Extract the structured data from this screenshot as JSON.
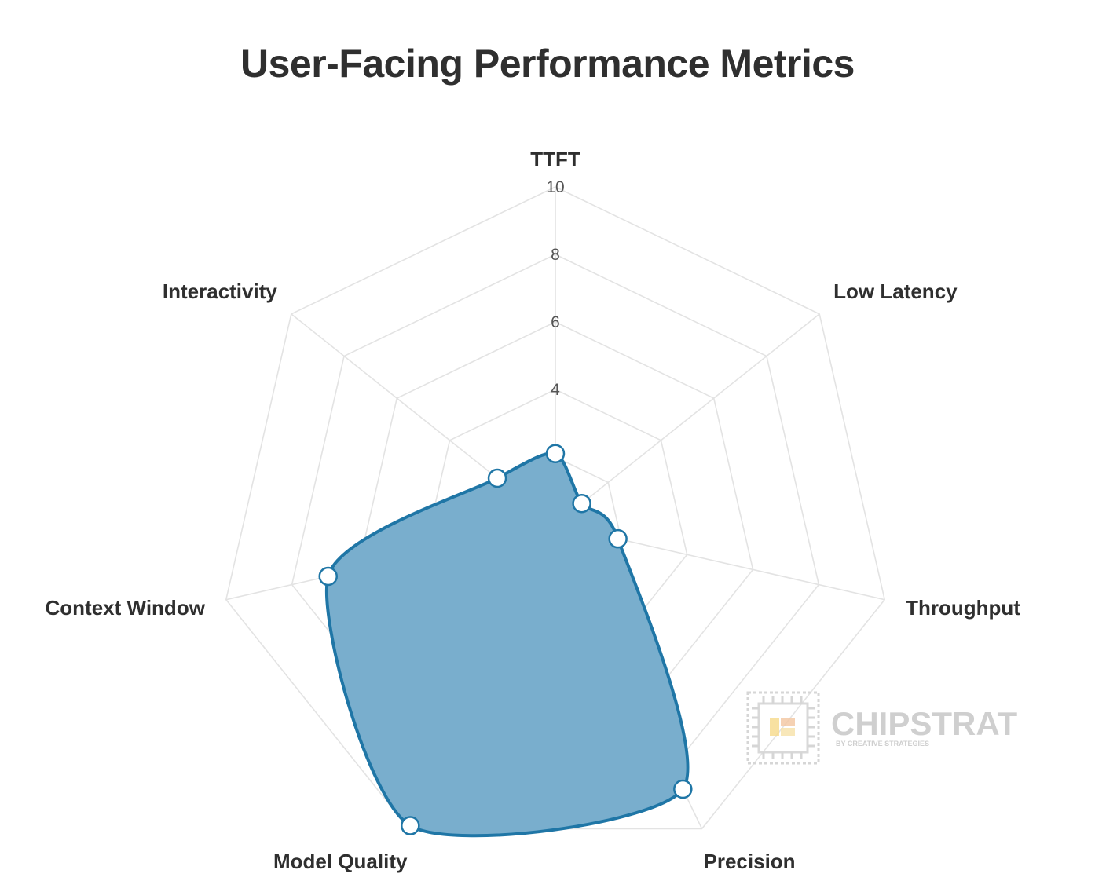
{
  "chart_data": {
    "type": "radar",
    "title": "User-Facing Performance Metrics",
    "axes": [
      "TTFT",
      "Low Latency",
      "Throughput",
      "Precision",
      "Model Quality",
      "Context Window",
      "Interactivity"
    ],
    "series": [
      {
        "values": [
          2.1,
          1.0,
          1.9,
          8.7,
          9.9,
          6.9,
          2.2
        ]
      }
    ],
    "rlim": [
      0,
      10
    ],
    "ticks": [
      "4",
      "6",
      "8",
      "10"
    ],
    "tick_values": [
      4,
      6,
      8,
      10
    ],
    "grid_levels": [
      2,
      4,
      6,
      8,
      10
    ],
    "grid": true
  },
  "colors": {
    "fill": "#79aecd",
    "stroke": "#1f76a6",
    "grid": "#e3e3e3",
    "text": "#2f2f2f"
  },
  "watermark": {
    "brand": "CHIPSTRAT",
    "sub": "BY CREATIVE STRATEGIES"
  }
}
